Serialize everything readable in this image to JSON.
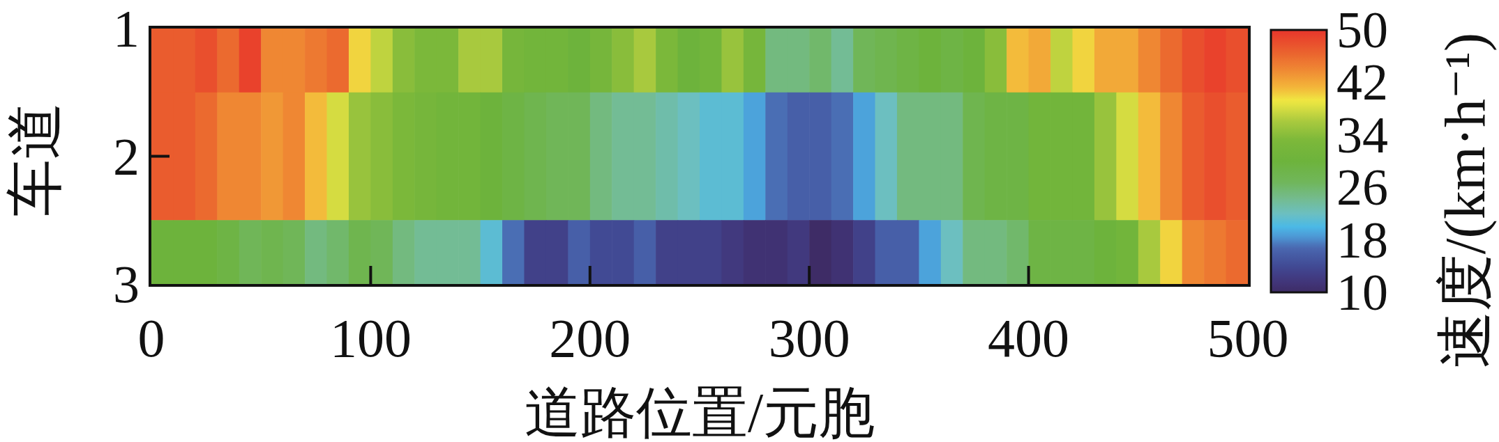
{
  "chart_data": {
    "type": "heatmap",
    "xlabel": "道路位置/元胞",
    "ylabel": "车道",
    "clabel": "速度/(km·h⁻¹)",
    "x": [
      5,
      15,
      25,
      35,
      45,
      55,
      65,
      75,
      85,
      95,
      105,
      115,
      125,
      135,
      145,
      155,
      165,
      175,
      185,
      195,
      205,
      215,
      225,
      235,
      245,
      255,
      265,
      275,
      285,
      295,
      305,
      315,
      325,
      335,
      345,
      355,
      365,
      375,
      385,
      395,
      405,
      415,
      425,
      435,
      445,
      455,
      465,
      475,
      485,
      495
    ],
    "y_categories": [
      "1",
      "2",
      "3"
    ],
    "cells": [
      [
        47,
        47,
        48,
        46,
        49,
        44,
        44,
        45,
        46,
        40,
        37,
        34,
        33,
        33,
        36,
        36,
        32,
        31,
        31,
        30,
        32,
        34,
        36,
        33,
        30,
        31,
        35,
        32,
        25,
        25,
        26,
        24,
        27,
        28,
        29,
        30,
        29,
        30,
        34,
        41,
        42,
        37,
        40,
        42,
        42,
        44,
        46,
        48,
        49,
        48
      ],
      [
        47,
        47,
        46,
        44,
        44,
        43,
        44,
        41,
        38,
        35,
        34,
        33,
        32,
        31,
        31,
        30,
        29,
        28,
        27,
        27,
        25,
        24,
        24,
        23,
        22,
        21,
        21,
        19,
        17,
        16,
        16,
        17,
        19,
        22,
        25,
        25,
        25,
        28,
        29,
        29,
        31,
        31,
        31,
        35,
        38,
        41,
        44,
        47,
        48,
        47
      ],
      [
        30,
        30,
        30,
        29,
        27,
        28,
        27,
        25,
        26,
        28,
        27,
        25,
        24,
        24,
        24,
        21,
        17,
        13,
        13,
        16,
        14,
        14,
        16,
        13,
        13,
        13,
        12,
        11,
        11,
        12,
        10,
        11,
        13,
        16,
        16,
        19,
        22,
        25,
        25,
        26,
        29,
        29,
        29,
        30,
        31,
        36,
        40,
        44,
        45,
        46
      ]
    ],
    "xlim": [
      0,
      500
    ],
    "xticks": [
      0,
      100,
      200,
      300,
      400,
      500
    ],
    "clim": [
      10,
      50
    ],
    "cticks": [
      10,
      18,
      26,
      34,
      42,
      50
    ]
  }
}
